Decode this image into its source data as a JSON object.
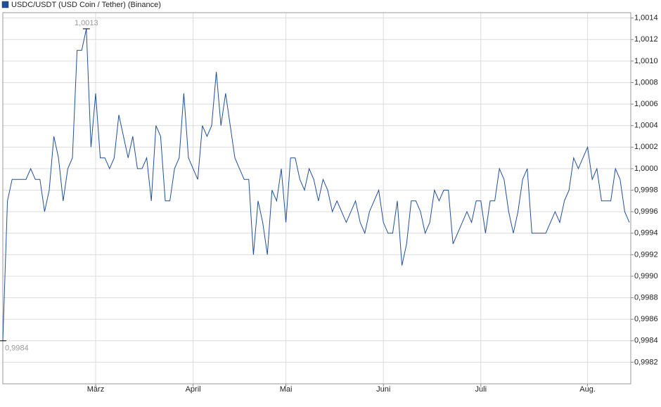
{
  "chart_data": {
    "type": "line",
    "categories": [
      null,
      null,
      null,
      null,
      null,
      null,
      null,
      null,
      null,
      null,
      null,
      null,
      null,
      null,
      null,
      null,
      null,
      null,
      null,
      null,
      "März",
      null,
      null,
      null,
      null,
      null,
      null,
      null,
      null,
      null,
      null,
      null,
      null,
      null,
      null,
      null,
      null,
      null,
      null,
      null,
      null,
      "April",
      null,
      null,
      null,
      null,
      null,
      null,
      null,
      null,
      null,
      null,
      null,
      null,
      null,
      null,
      null,
      null,
      null,
      null,
      null,
      "Mai",
      null,
      null,
      null,
      null,
      null,
      null,
      null,
      null,
      null,
      null,
      null,
      null,
      null,
      null,
      null,
      null,
      null,
      null,
      null,
      null,
      "Juni",
      null,
      null,
      null,
      null,
      null,
      null,
      null,
      null,
      null,
      null,
      null,
      null,
      null,
      null,
      null,
      null,
      null,
      null,
      null,
      null,
      "Juli",
      null,
      null,
      null,
      null,
      null,
      null,
      null,
      null,
      null,
      null,
      null,
      null,
      null,
      null,
      null,
      null,
      null,
      null,
      null,
      null,
      null,
      null,
      "Aug.",
      null,
      null,
      null,
      null,
      null,
      null,
      null,
      null,
      null
    ],
    "series": [
      {
        "name": "USDC/USDT (USD Coin / Tether) (Binance)",
        "color": "#1f4f9c",
        "values": [
          0.9984,
          0.9997,
          0.9999,
          0.9999,
          0.9999,
          0.9999,
          1.0,
          0.9999,
          0.9999,
          0.9996,
          0.9998,
          1.0003,
          1.0001,
          0.9997,
          1.0,
          1.0001,
          1.0011,
          1.0011,
          1.0013,
          1.0002,
          1.0007,
          1.0001,
          1.0001,
          1.0,
          1.0001,
          1.0005,
          1.0003,
          1.0001,
          1.0003,
          1.0,
          1.0,
          1.0001,
          0.9997,
          1.0004,
          1.0003,
          0.9997,
          0.9997,
          1.0,
          1.0001,
          1.0007,
          1.0001,
          1.0,
          0.9999,
          1.0004,
          1.0003,
          1.0004,
          1.0009,
          1.0004,
          1.0007,
          1.0004,
          1.0001,
          1.0,
          0.9999,
          0.9999,
          0.9992,
          0.9997,
          0.9995,
          0.9992,
          0.9998,
          0.9997,
          1.0,
          0.9995,
          1.0001,
          1.0001,
          0.9999,
          0.9998,
          1.0,
          0.9999,
          0.9997,
          0.9999,
          0.9998,
          0.9996,
          0.9997,
          0.9996,
          0.9995,
          0.9996,
          0.9997,
          0.9995,
          0.9994,
          0.9996,
          0.9997,
          0.9998,
          0.9995,
          0.9994,
          0.9994,
          0.9997,
          0.9991,
          0.9993,
          0.9997,
          0.9997,
          0.9996,
          0.9994,
          0.9995,
          0.9998,
          0.9997,
          0.9998,
          0.9998,
          0.9993,
          0.9994,
          0.9995,
          0.9996,
          0.9995,
          0.9997,
          0.9997,
          0.9994,
          0.9997,
          0.9997,
          1.0,
          0.9999,
          0.9996,
          0.9994,
          0.9996,
          0.9999,
          1.0,
          0.9994,
          0.9994,
          0.9994,
          0.9994,
          0.9995,
          0.9996,
          0.9995,
          0.9997,
          0.9998,
          1.0001,
          1.0,
          1.0001,
          1.0002,
          0.9999,
          1.0,
          0.9997,
          0.9997,
          0.9997,
          1.0,
          0.9999,
          0.9996,
          0.9995
        ],
        "value_labels": [
          "0,9984",
          null,
          null,
          null,
          null,
          null,
          null,
          null,
          null,
          null,
          null,
          null,
          null,
          null,
          null,
          null,
          null,
          null,
          "1,0013",
          null,
          null,
          null,
          null,
          null,
          null,
          null,
          null,
          null,
          null,
          null,
          null,
          null,
          null,
          null,
          null,
          null,
          null,
          null,
          null,
          null,
          null,
          null,
          null,
          null,
          null,
          null,
          null,
          null,
          null,
          null,
          null,
          null,
          null,
          null,
          null,
          null,
          null,
          null,
          null,
          null,
          null,
          null,
          null,
          null,
          null,
          null,
          null,
          null,
          null,
          null,
          null,
          null,
          null,
          null,
          null,
          null,
          null,
          null,
          null,
          null,
          null,
          null,
          null,
          null,
          null,
          null,
          null,
          null,
          null,
          null,
          null,
          null,
          null,
          null,
          null,
          null,
          null,
          null,
          null,
          null,
          null,
          null,
          null,
          null,
          null,
          null,
          null,
          null,
          null,
          null,
          null,
          null,
          null,
          null,
          null,
          null,
          null,
          null,
          null,
          null,
          null,
          null,
          null,
          null,
          null,
          null,
          null,
          null,
          null,
          null,
          null,
          null,
          null,
          null,
          null,
          null
        ]
      }
    ],
    "ylim": [
      0.998,
      1.00145
    ],
    "yticks": [
      {
        "value": 0.9982,
        "label": "0,9982"
      },
      {
        "value": 0.9984,
        "label": "0,9984"
      },
      {
        "value": 0.9986,
        "label": "0,9986"
      },
      {
        "value": 0.9988,
        "label": "0,9988"
      },
      {
        "value": 0.999,
        "label": "0,9990"
      },
      {
        "value": 0.9992,
        "label": "0,9992"
      },
      {
        "value": 0.9994,
        "label": "0,9994"
      },
      {
        "value": 0.9996,
        "label": "0,9996"
      },
      {
        "value": 0.9998,
        "label": "0,9998"
      },
      {
        "value": 1.0,
        "label": "1,0000"
      },
      {
        "value": 1.0002,
        "label": "1,0002"
      },
      {
        "value": 1.0004,
        "label": "1,0004"
      },
      {
        "value": 1.0006,
        "label": "1,0006"
      },
      {
        "value": 1.0008,
        "label": "1,0008"
      },
      {
        "value": 1.001,
        "label": "1,0010"
      },
      {
        "value": 1.0012,
        "label": "1,0012"
      },
      {
        "value": 1.0014,
        "label": "1,0014"
      }
    ],
    "grid": true
  }
}
